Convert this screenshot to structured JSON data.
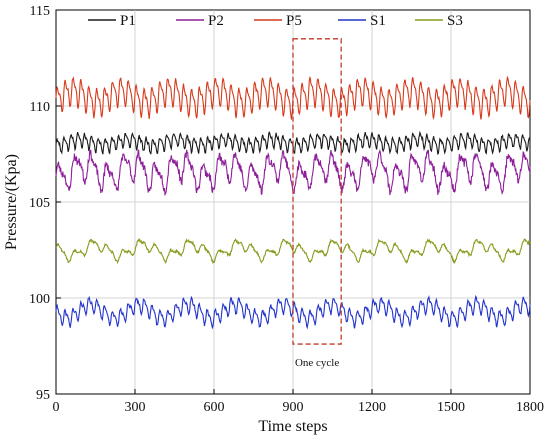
{
  "chart_data": {
    "type": "line",
    "xlabel": "Time steps",
    "ylabel": "Pressure/(Kpa)",
    "xlim": [
      0,
      1800
    ],
    "ylim": [
      95,
      115
    ],
    "xticks": [
      0,
      300,
      600,
      900,
      1200,
      1500,
      1800
    ],
    "yticks": [
      95,
      100,
      105,
      110,
      115
    ],
    "grid": true,
    "legend_position": "top",
    "annotation": {
      "text": "One cycle",
      "x_range": [
        900,
        1083
      ],
      "y_range": [
        97.6,
        113.5
      ],
      "style": "dashed-box",
      "color": "#c0392b"
    },
    "series": [
      {
        "name": "P1",
        "color": "#1a1a1a",
        "base": 108.1,
        "cycle": 26,
        "amp": 0.45,
        "ncycle_amp": 0.15,
        "noise": 0.08,
        "seed": 11
      },
      {
        "name": "P2",
        "color": "#8e1f9a",
        "base": 106.6,
        "cycle": 61,
        "amp": 0.9,
        "ncycle_amp": 0.35,
        "noise": 0.22,
        "seed": 23
      },
      {
        "name": "P5",
        "color": "#d63a1b",
        "base": 110.5,
        "cycle": 30,
        "amp": 0.9,
        "ncycle_amp": 0.3,
        "noise": 0.07,
        "seed": 37
      },
      {
        "name": "S1",
        "color": "#2233cc",
        "base": 99.3,
        "cycle": 30,
        "amp": 0.5,
        "ncycle_amp": 0.35,
        "noise": 0.07,
        "seed": 41
      },
      {
        "name": "S3",
        "color": "#8a9a1e",
        "base": 102.5,
        "cycle": 61,
        "amp": 0.35,
        "ncycle_amp": 0.3,
        "noise": 0.06,
        "seed": 53
      }
    ]
  }
}
